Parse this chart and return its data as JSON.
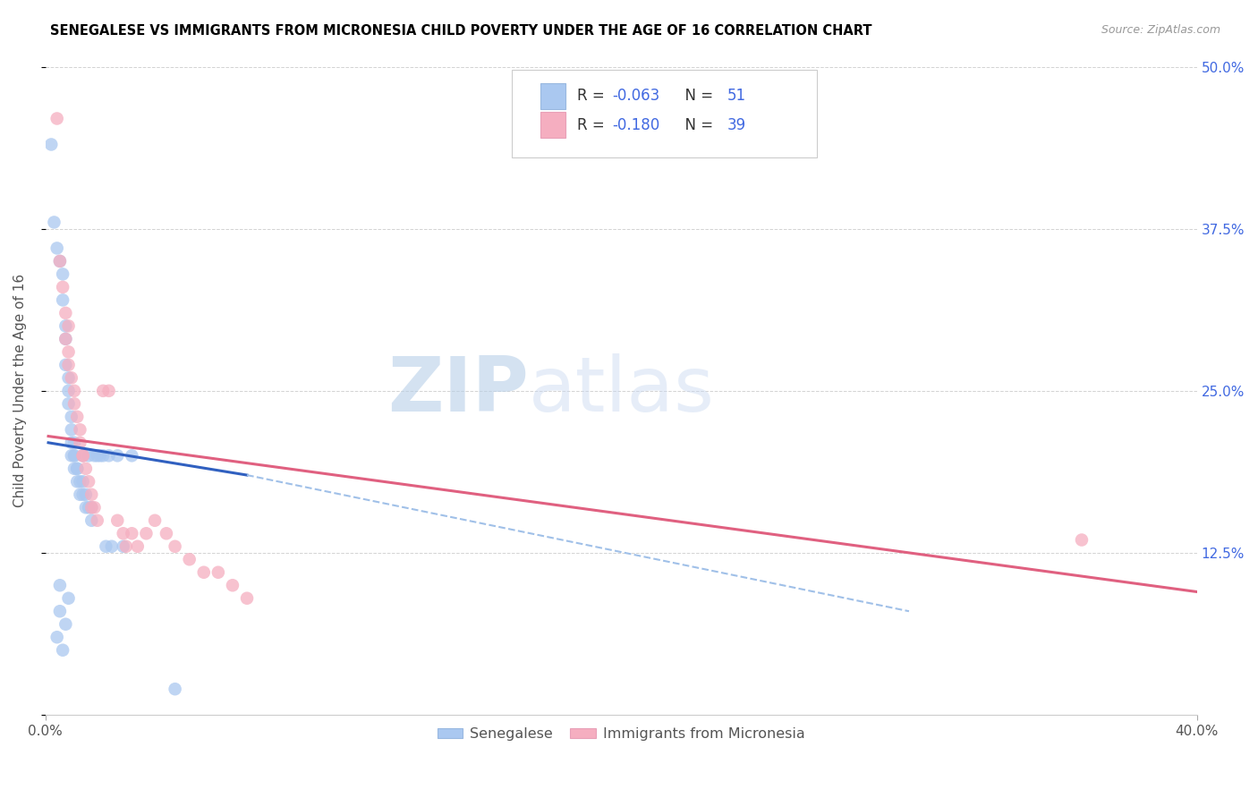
{
  "title": "SENEGALESE VS IMMIGRANTS FROM MICRONESIA CHILD POVERTY UNDER THE AGE OF 16 CORRELATION CHART",
  "source_text": "Source: ZipAtlas.com",
  "ylabel": "Child Poverty Under the Age of 16",
  "xlim": [
    0.0,
    0.4
  ],
  "ylim": [
    0.0,
    0.5
  ],
  "xticks": [
    0.0,
    0.4
  ],
  "xticklabels": [
    "0.0%",
    "40.0%"
  ],
  "yticks": [
    0.0,
    0.125,
    0.25,
    0.375,
    0.5
  ],
  "yticklabels": [
    "",
    "12.5%",
    "25.0%",
    "37.5%",
    "50.0%"
  ],
  "blue_color": "#aac8f0",
  "pink_color": "#f5aec0",
  "blue_line_color": "#3060c0",
  "pink_line_color": "#e06080",
  "dashed_line_color": "#a0c0e8",
  "R_blue": -0.063,
  "N_blue": 51,
  "R_pink": -0.18,
  "N_pink": 39,
  "watermark_zip": "ZIP",
  "watermark_atlas": "atlas",
  "blue_scatter_x": [
    0.002,
    0.003,
    0.004,
    0.004,
    0.005,
    0.005,
    0.005,
    0.006,
    0.006,
    0.006,
    0.007,
    0.007,
    0.007,
    0.007,
    0.008,
    0.008,
    0.008,
    0.008,
    0.009,
    0.009,
    0.009,
    0.009,
    0.01,
    0.01,
    0.01,
    0.01,
    0.011,
    0.011,
    0.011,
    0.012,
    0.012,
    0.013,
    0.013,
    0.013,
    0.014,
    0.014,
    0.015,
    0.015,
    0.016,
    0.016,
    0.017,
    0.018,
    0.019,
    0.02,
    0.021,
    0.022,
    0.023,
    0.025,
    0.027,
    0.03,
    0.045
  ],
  "blue_scatter_y": [
    0.44,
    0.38,
    0.36,
    0.06,
    0.35,
    0.1,
    0.08,
    0.34,
    0.32,
    0.05,
    0.3,
    0.29,
    0.27,
    0.07,
    0.26,
    0.25,
    0.24,
    0.09,
    0.23,
    0.22,
    0.21,
    0.2,
    0.21,
    0.2,
    0.19,
    0.2,
    0.19,
    0.18,
    0.19,
    0.18,
    0.17,
    0.18,
    0.17,
    0.2,
    0.17,
    0.16,
    0.16,
    0.2,
    0.16,
    0.15,
    0.2,
    0.2,
    0.2,
    0.2,
    0.13,
    0.2,
    0.13,
    0.2,
    0.13,
    0.2,
    0.02
  ],
  "pink_scatter_x": [
    0.004,
    0.005,
    0.006,
    0.007,
    0.007,
    0.008,
    0.008,
    0.009,
    0.01,
    0.01,
    0.011,
    0.012,
    0.012,
    0.013,
    0.013,
    0.014,
    0.015,
    0.016,
    0.016,
    0.017,
    0.018,
    0.02,
    0.022,
    0.025,
    0.027,
    0.028,
    0.03,
    0.032,
    0.035,
    0.038,
    0.042,
    0.045,
    0.05,
    0.055,
    0.06,
    0.065,
    0.07,
    0.36,
    0.008
  ],
  "pink_scatter_y": [
    0.46,
    0.35,
    0.33,
    0.31,
    0.29,
    0.28,
    0.27,
    0.26,
    0.25,
    0.24,
    0.23,
    0.22,
    0.21,
    0.2,
    0.2,
    0.19,
    0.18,
    0.17,
    0.16,
    0.16,
    0.15,
    0.25,
    0.25,
    0.15,
    0.14,
    0.13,
    0.14,
    0.13,
    0.14,
    0.15,
    0.14,
    0.13,
    0.12,
    0.11,
    0.11,
    0.1,
    0.09,
    0.135,
    0.3
  ],
  "blue_line_x": [
    0.001,
    0.07
  ],
  "blue_line_y": [
    0.21,
    0.185
  ],
  "dashed_line_x": [
    0.07,
    0.3
  ],
  "dashed_line_y": [
    0.185,
    0.08
  ],
  "pink_line_x": [
    0.001,
    0.4
  ],
  "pink_line_y": [
    0.215,
    0.095
  ]
}
